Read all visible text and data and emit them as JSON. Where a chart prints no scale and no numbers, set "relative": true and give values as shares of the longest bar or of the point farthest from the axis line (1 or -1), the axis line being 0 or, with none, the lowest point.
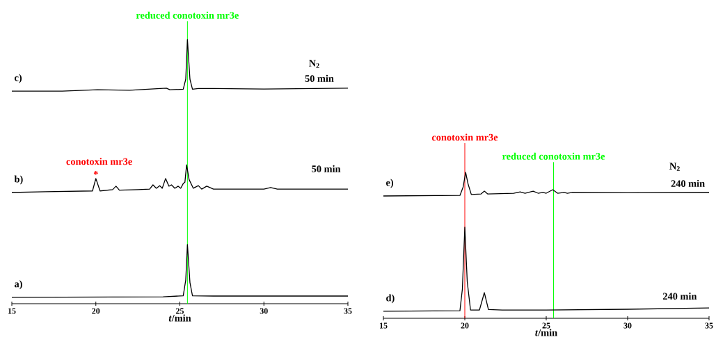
{
  "chart_data": [
    {
      "type": "line",
      "relative": true,
      "xlabel": "*t*/min",
      "xlim": [
        15,
        35
      ],
      "xticks": [
        15,
        20,
        25,
        30,
        35
      ],
      "series": [
        {
          "name": "c)",
          "color": "#000000",
          "x": [
            15,
            18,
            20.1,
            22,
            24.2,
            24.4,
            25.2,
            25.35,
            25.45,
            25.6,
            25.75,
            26.1,
            27,
            30,
            35
          ],
          "values": [
            0.805,
            0.805,
            0.81,
            0.808,
            0.816,
            0.81,
            0.812,
            0.85,
            1.0,
            0.85,
            0.812,
            0.815,
            0.815,
            0.813,
            0.816
          ]
        },
        {
          "name": "b)",
          "color": "#000000",
          "x": [
            15,
            17,
            19.8,
            20.0,
            20.25,
            21.0,
            21.2,
            21.4,
            22.5,
            23.2,
            23.4,
            23.6,
            23.8,
            23.95,
            24.15,
            24.35,
            24.5,
            24.7,
            24.9,
            25.05,
            25.2,
            25.3,
            25.4,
            25.55,
            25.8,
            26.1,
            26.3,
            26.6,
            27.0,
            30.0,
            30.4,
            30.8,
            35
          ],
          "values": [
            0.421,
            0.424,
            0.427,
            0.474,
            0.427,
            0.432,
            0.445,
            0.43,
            0.432,
            0.434,
            0.45,
            0.437,
            0.447,
            0.437,
            0.474,
            0.445,
            0.45,
            0.437,
            0.445,
            0.437,
            0.455,
            0.46,
            0.526,
            0.47,
            0.437,
            0.447,
            0.434,
            0.445,
            0.434,
            0.434,
            0.44,
            0.434,
            0.434
          ]
        },
        {
          "name": "a)",
          "color": "#000000",
          "x": [
            15,
            24,
            25.2,
            25.35,
            25.45,
            25.6,
            25.75,
            27,
            35
          ],
          "values": [
            0.024,
            0.026,
            0.03,
            0.09,
            0.224,
            0.08,
            0.03,
            0.029,
            0.029
          ]
        }
      ],
      "ref_lines": [
        {
          "axis": "x",
          "value": 25.45,
          "label": "reduced conotoxin mr3e",
          "color": "#00ff00"
        }
      ],
      "annotations": [
        "N$_{2}$",
        "50 min",
        "50 min",
        "conotoxin mr3e",
        "*"
      ]
    },
    {
      "type": "line",
      "relative": true,
      "xlabel": "*t*/min",
      "xlim": [
        15,
        35
      ],
      "xticks": [
        15,
        20,
        25,
        30,
        35
      ],
      "series": [
        {
          "name": "e)",
          "color": "#000000",
          "x": [
            15,
            19.7,
            19.9,
            20.05,
            20.2,
            20.4,
            21.0,
            21.2,
            21.4,
            23.0,
            23.4,
            23.7,
            24.2,
            24.5,
            24.8,
            25.0,
            25.4,
            25.7,
            26.1,
            26.3,
            26.6,
            30,
            35
          ],
          "values": [
            0.838,
            0.842,
            0.9,
            1.0,
            0.92,
            0.848,
            0.852,
            0.871,
            0.852,
            0.857,
            0.866,
            0.857,
            0.871,
            0.857,
            0.862,
            0.857,
            0.881,
            0.857,
            0.862,
            0.857,
            0.862,
            0.86,
            0.862
          ]
        },
        {
          "name": "d)",
          "color": "#000000",
          "x": [
            15,
            19.7,
            19.85,
            20.0,
            20.15,
            20.35,
            20.9,
            21.2,
            21.45,
            22.3,
            25,
            30,
            35
          ],
          "values": [
            0.048,
            0.052,
            0.2,
            0.624,
            0.25,
            0.057,
            0.057,
            0.176,
            0.06,
            0.057,
            0.057,
            0.062,
            0.071
          ]
        }
      ],
      "ref_lines": [
        {
          "axis": "x",
          "value": 20.0,
          "label": "conotoxin mr3e",
          "color": "#ff0000"
        },
        {
          "axis": "x",
          "value": 25.45,
          "label": "reduced conotoxin mr3e",
          "color": "#00ff00"
        }
      ],
      "annotations": [
        "N$_{2}$",
        "240 min",
        "240 min"
      ]
    }
  ]
}
